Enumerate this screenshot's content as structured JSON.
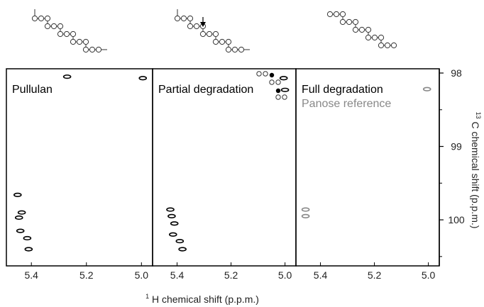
{
  "chart_data": {
    "type": "scatter",
    "xlabel_main": "H chemical shift (p.p.m.)",
    "xlabel_sup": "1",
    "ylabel_main": "C chemical shift (p.p.m.)",
    "ylabel_sup": "13",
    "xlim": [
      5.465,
      4.975
    ],
    "ylim": [
      98.0,
      100.55
    ],
    "x_ticks": [
      5.4,
      5.2,
      5.0
    ],
    "x_tick_labels": [
      "5.4",
      "5.2",
      "5.0"
    ],
    "y_ticks": [
      98,
      99,
      100
    ],
    "y_tick_labels": [
      "98",
      "99",
      "100"
    ],
    "panels": [
      {
        "label": "Pullulan",
        "series": [
          {
            "color": "#000000",
            "points": [
              {
                "x": 5.27,
                "y": 98.05
              },
              {
                "x": 4.995,
                "y": 98.07
              },
              {
                "x": 5.45,
                "y": 99.66
              },
              {
                "x": 5.435,
                "y": 99.9
              },
              {
                "x": 5.445,
                "y": 99.97
              },
              {
                "x": 5.44,
                "y": 100.15
              },
              {
                "x": 5.415,
                "y": 100.25
              },
              {
                "x": 5.41,
                "y": 100.4
              }
            ]
          }
        ]
      },
      {
        "label": "Partial degradation",
        "series": [
          {
            "color": "#000000",
            "points": [
              {
                "x": 5.005,
                "y": 98.07
              },
              {
                "x": 5.0,
                "y": 98.23
              },
              {
                "x": 5.425,
                "y": 99.86
              },
              {
                "x": 5.42,
                "y": 99.95
              },
              {
                "x": 5.41,
                "y": 100.05
              },
              {
                "x": 5.415,
                "y": 100.2
              },
              {
                "x": 5.39,
                "y": 100.29
              },
              {
                "x": 5.38,
                "y": 100.4
              }
            ]
          }
        ]
      },
      {
        "label": "Full degradation",
        "legend_extra": "Panose reference",
        "series": [
          {
            "name": "Panose reference",
            "color": "#888888",
            "points": [
              {
                "x": 5.005,
                "y": 98.22
              },
              {
                "x": 5.455,
                "y": 99.86
              },
              {
                "x": 5.455,
                "y": 99.95
              }
            ]
          }
        ]
      }
    ]
  }
}
